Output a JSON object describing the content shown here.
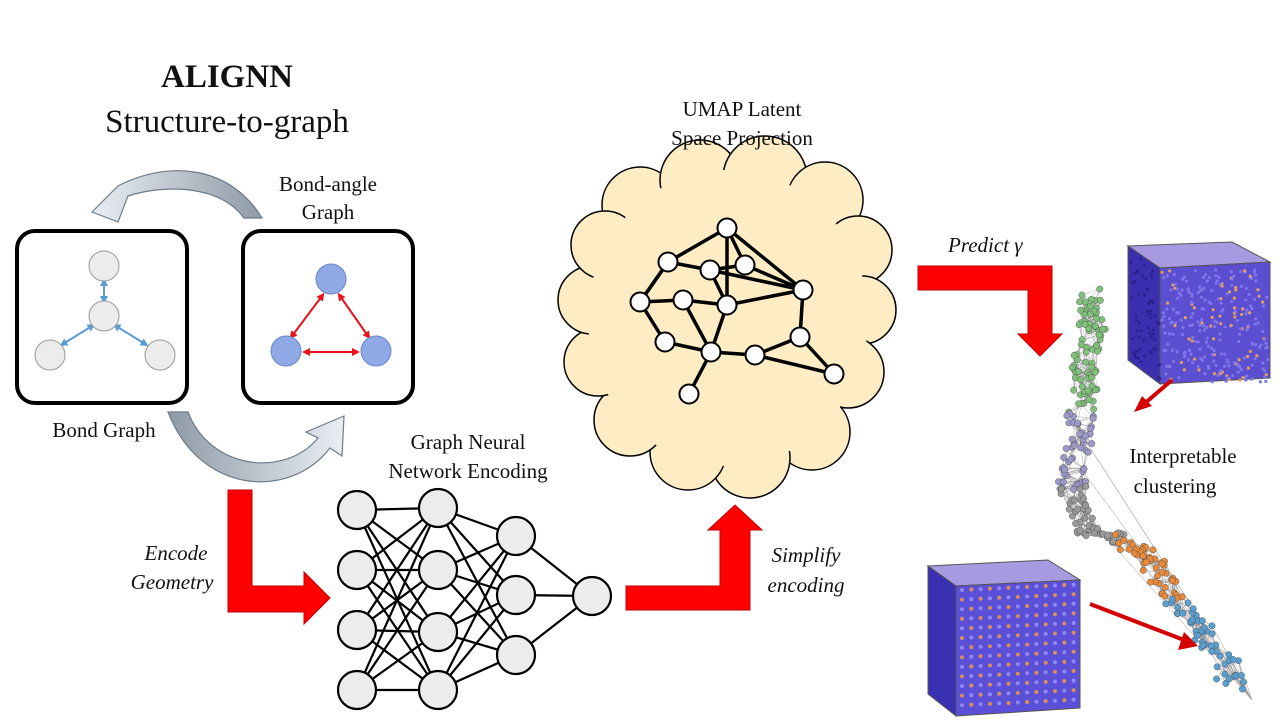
{
  "title": {
    "main": "ALIGNN",
    "sub": "Structure-to-graph"
  },
  "labels": {
    "bond_angle_line1": "Bond-angle",
    "bond_angle_line2": "Graph",
    "bond_graph": "Bond Graph",
    "gnn_line1": "Graph Neural",
    "gnn_line2": "Network Encoding",
    "umap_line1": "UMAP Latent",
    "umap_line2": "Space Projection",
    "encode_line1": "Encode",
    "encode_line2": "Geometry",
    "simplify_line1": "Simplify",
    "simplify_line2": "encoding",
    "predict": "Predict",
    "predict_symbol": "γ",
    "interp_line1": "Interpretable",
    "interp_line2": "clustering"
  },
  "colors": {
    "arrow_red": "#ff0000",
    "cloud_fill": "#fdecc4",
    "node_grey": "#ececec",
    "node_blue": "#8fa9e6",
    "bond_blue": "#5b9bd5",
    "angle_red": "#e8141a",
    "curved_arrow": "#b7c2cc"
  }
}
